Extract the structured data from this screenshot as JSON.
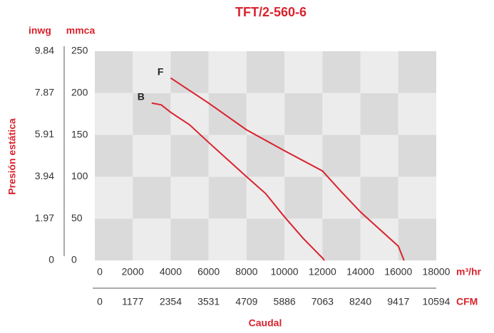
{
  "chart_data": {
    "type": "line",
    "title": "TFT/2-560-6",
    "y_label": "mmca",
    "y2_label": "inwg",
    "y_title": "Presión estática",
    "x_label": "m³/hr",
    "x2_label": "CFM",
    "x_title": "Caudal",
    "xlim": [
      0,
      18000
    ],
    "xticks": [
      0,
      2000,
      4000,
      6000,
      8000,
      10000,
      12000,
      14000,
      16000,
      18000
    ],
    "x2lim": [
      0,
      10594
    ],
    "x2ticks": [
      0,
      1177,
      2354,
      3531,
      4709,
      5886,
      7063,
      8240,
      9417,
      10594
    ],
    "ylim": [
      0,
      250
    ],
    "yticks": [
      0,
      50,
      100,
      150,
      200,
      250
    ],
    "y2lim": [
      0,
      9.84
    ],
    "y2ticks": [
      0,
      1.97,
      3.94,
      5.91,
      7.87,
      9.84
    ],
    "series": [
      {
        "name": "F",
        "color": "#d9232e",
        "x": [
          4000,
          6000,
          8000,
          10000,
          12000,
          13000,
          14000,
          16000,
          16300
        ],
        "values": [
          218,
          188,
          156,
          131,
          107,
          82,
          58,
          17,
          0
        ]
      },
      {
        "name": "B",
        "color": "#d9232e",
        "x": [
          3000,
          3500,
          4000,
          5000,
          6000,
          8000,
          9000,
          10000,
          11000,
          12000,
          12100
        ],
        "values": [
          188,
          186,
          177,
          162,
          141,
          100,
          80,
          52,
          26,
          3,
          0
        ]
      }
    ]
  }
}
